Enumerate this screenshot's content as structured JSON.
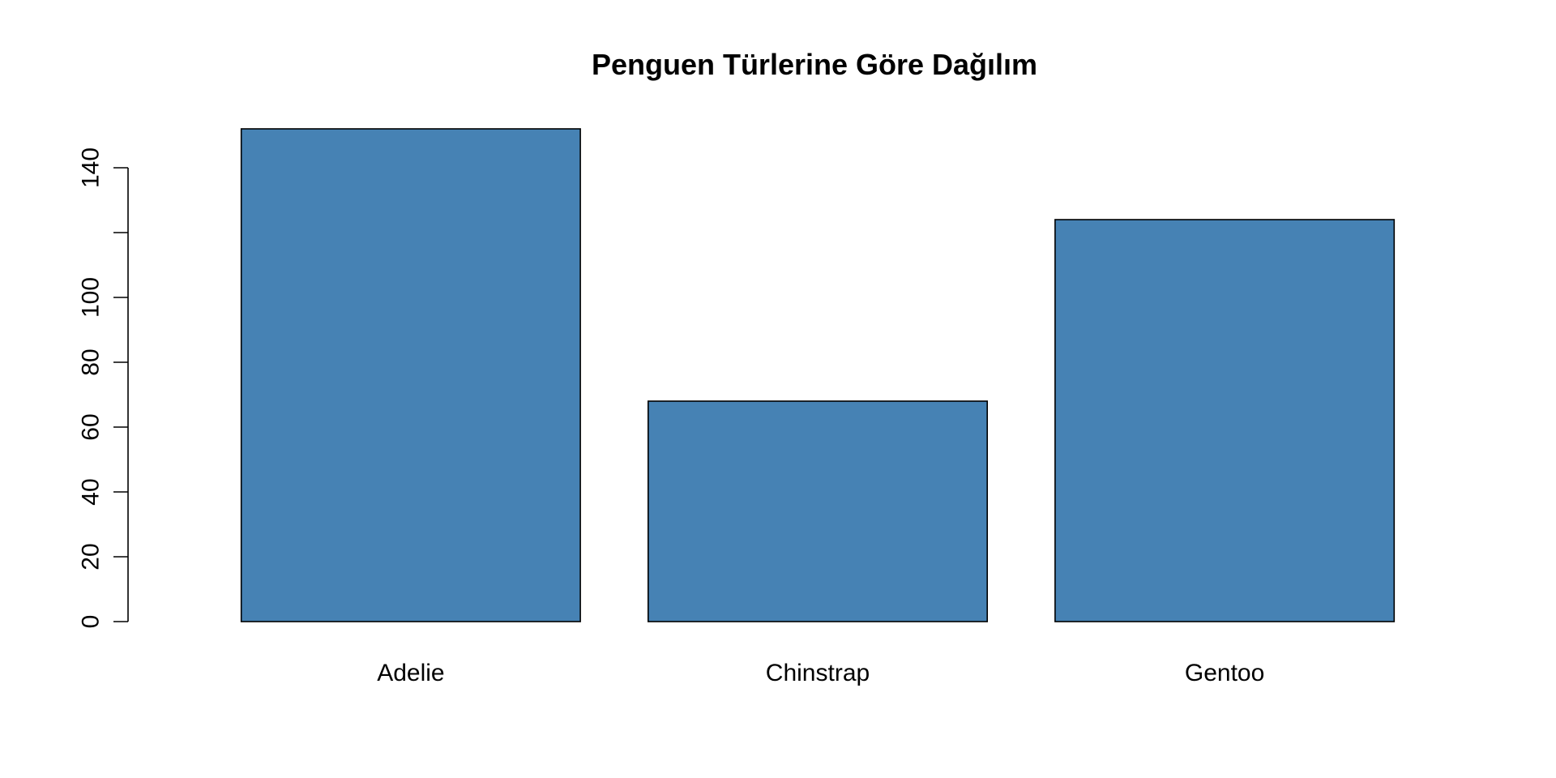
{
  "chart_data": {
    "type": "bar",
    "title": "Penguen Türlerine Göre Dağılım",
    "xlabel": "",
    "ylabel": "",
    "categories": [
      "Adelie",
      "Chinstrap",
      "Gentoo"
    ],
    "values": [
      152,
      68,
      124
    ],
    "ylim": [
      0,
      152
    ],
    "y_ticks": [
      0,
      20,
      40,
      60,
      80,
      100,
      120,
      140
    ],
    "y_tick_labels": [
      "0",
      "20",
      "40",
      "60",
      "80",
      "100",
      "",
      "140"
    ],
    "bar_color": "#4682b4",
    "grid": false,
    "legend": "none"
  }
}
